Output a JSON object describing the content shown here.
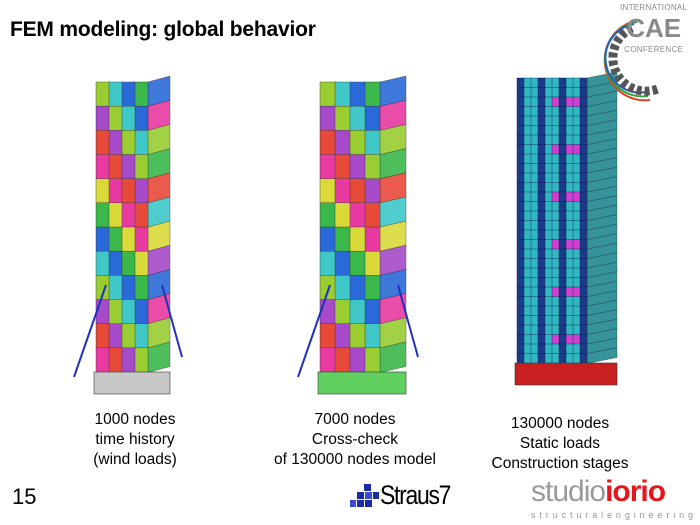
{
  "slide": {
    "title": "FEM modeling: global behavior",
    "page_number": "15"
  },
  "models": [
    {
      "lines": [
        "1000 nodes",
        "time history",
        "(wind loads)"
      ]
    },
    {
      "lines": [
        "7000 nodes",
        "Cross-check",
        "of 130000 nodes model"
      ]
    },
    {
      "lines": [
        "130000 nodes",
        "Static loads",
        "Construction stages"
      ]
    }
  ],
  "logos": {
    "cae": {
      "top": "INTERNATIONAL",
      "main": "CAE",
      "bottom": "CONFERENCE"
    },
    "straus": "Straus7",
    "studio": {
      "grey": "studio",
      "red": "iorio",
      "sub": "structuralengineering"
    }
  },
  "colors": {
    "tower_palette": [
      "#9acd32",
      "#e83aa0",
      "#2a6ad8",
      "#a64ac9",
      "#d9d93a",
      "#40c8c8",
      "#e84a3a",
      "#3ab84a"
    ],
    "dense_mesh": "#2fb8c0",
    "base_red": "#c82020",
    "brace": "#2030c0",
    "studio_red": "#e8141b",
    "straus_blue": "#1a2aa8"
  }
}
